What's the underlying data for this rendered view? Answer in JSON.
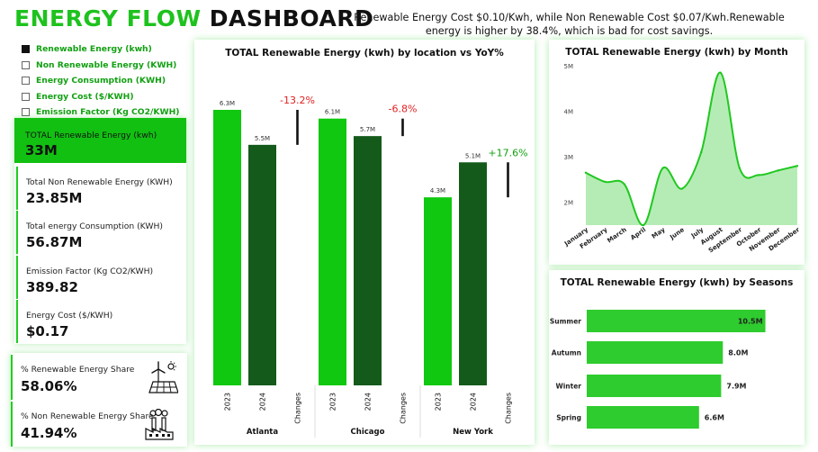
{
  "header": {
    "title_part1": "ENERGY FLOW",
    "title_part2": "DASHBOARD",
    "note": "Renewable Energy Cost $0.10/Kwh, while Non Renewable Cost $0.07/Kwh.Renewable energy is higher by 38.4%, which is bad for cost savings."
  },
  "slicer": {
    "items": [
      {
        "label": "Renewable Energy (kwh)",
        "checked": true
      },
      {
        "label": "Non Renewable Energy (KWH)",
        "checked": false
      },
      {
        "label": "Energy Consumption (KWH)",
        "checked": false
      },
      {
        "label": "Energy Cost ($/KWH)",
        "checked": false
      },
      {
        "label": "Emission Factor (Kg CO2/KWH)",
        "checked": false
      }
    ]
  },
  "kpis": {
    "highlight": {
      "label": "TOTAL Renewable Energy (kwh)",
      "value": "33M"
    },
    "cards": [
      {
        "label": "Total Non Renewable Energy (KWH)",
        "value": "23.85M"
      },
      {
        "label": "Total energy Consumption (KWH)",
        "value": "56.87M"
      },
      {
        "label": "Emission Factor (Kg CO2/KWH)",
        "value": "389.82"
      },
      {
        "label": "Energy Cost ($/KWH)",
        "value": "$0.17"
      }
    ]
  },
  "shares": [
    {
      "label": "% Renewable Energy Share",
      "value": "58.06%",
      "icon": "solar-wind-icon"
    },
    {
      "label": "% Non Renewable Energy Share",
      "value": "41.94%",
      "icon": "factory-icon"
    }
  ],
  "colors": {
    "accent": "#12c012",
    "bright_green": "#0fc80f",
    "dark_green": "#145a1a",
    "negative": "#e02020",
    "positive": "#12a012",
    "area_fill": "#b5ecb5",
    "area_line": "#20c820",
    "season_bar": "#2ecc2e"
  },
  "chart_data": [
    {
      "type": "bar",
      "title": "TOTAL Renewable Energy (kwh) by location vs YoY%",
      "locations": [
        {
          "name": "Atlanta",
          "v2023": 6.3,
          "v2024": 5.5,
          "label2023": "6.3M",
          "label2024": "5.5M",
          "change": "-13.2%",
          "change_sign": -1
        },
        {
          "name": "Chicago",
          "v2023": 6.1,
          "v2024": 5.7,
          "label2023": "6.1M",
          "label2024": "5.7M",
          "change": "-6.8%",
          "change_sign": -1
        },
        {
          "name": "New York",
          "v2023": 4.3,
          "v2024": 5.1,
          "label2023": "4.3M",
          "label2024": "5.1M",
          "change": "+17.6%",
          "change_sign": 1
        }
      ],
      "subcategories": [
        "2023",
        "2024",
        "Changes"
      ],
      "ylim": [
        0,
        7
      ]
    },
    {
      "type": "area",
      "title": "TOTAL Renewable Energy (kwh) by Month",
      "categories": [
        "January",
        "February",
        "March",
        "April",
        "May",
        "June",
        "July",
        "August",
        "September",
        "October",
        "November",
        "December"
      ],
      "values": [
        2.65,
        2.45,
        2.4,
        1.5,
        2.75,
        2.3,
        3.1,
        4.85,
        2.75,
        2.6,
        2.7,
        2.8
      ],
      "yticks": [
        "2M",
        "3M",
        "4M",
        "5M"
      ],
      "ytick_values": [
        2,
        3,
        4,
        5
      ],
      "ylim": [
        1.5,
        5.1
      ]
    },
    {
      "type": "bar",
      "orientation": "horizontal",
      "title": "TOTAL Renewable Energy (kwh) by Seasons",
      "categories": [
        "Summer",
        "Autumn",
        "Winter",
        "Spring"
      ],
      "values": [
        10.5,
        8.0,
        7.9,
        6.6
      ],
      "labels": [
        "10.5M",
        "8.0M",
        "7.9M",
        "6.6M"
      ],
      "xlim": [
        0,
        11
      ]
    }
  ]
}
